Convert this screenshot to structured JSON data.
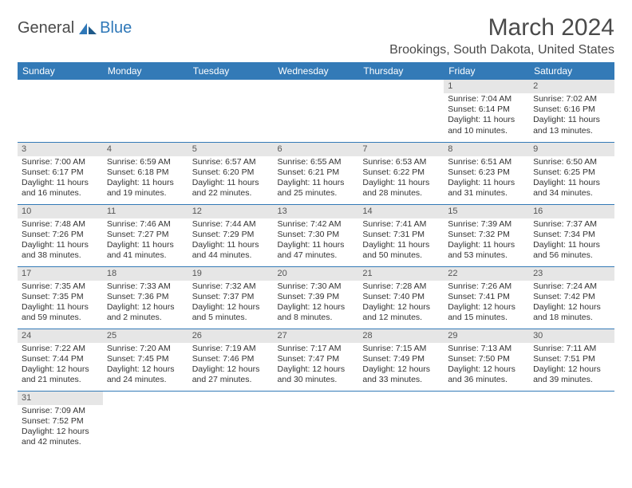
{
  "brand": {
    "part1": "General",
    "part2": "Blue"
  },
  "title": "March 2024",
  "location": "Brookings, South Dakota, United States",
  "colors": {
    "header_bg": "#337ab7",
    "header_text": "#ffffff",
    "daynum_bg": "#e6e6e6",
    "border": "#337ab7",
    "brand_gray": "#4a4a4a",
    "brand_blue": "#2f78b8"
  },
  "weekdays": [
    "Sunday",
    "Monday",
    "Tuesday",
    "Wednesday",
    "Thursday",
    "Friday",
    "Saturday"
  ],
  "first_weekday_index": 5,
  "days": [
    {
      "n": 1,
      "sunrise": "7:04 AM",
      "sunset": "6:14 PM",
      "dl_h": 11,
      "dl_m": 10
    },
    {
      "n": 2,
      "sunrise": "7:02 AM",
      "sunset": "6:16 PM",
      "dl_h": 11,
      "dl_m": 13
    },
    {
      "n": 3,
      "sunrise": "7:00 AM",
      "sunset": "6:17 PM",
      "dl_h": 11,
      "dl_m": 16
    },
    {
      "n": 4,
      "sunrise": "6:59 AM",
      "sunset": "6:18 PM",
      "dl_h": 11,
      "dl_m": 19
    },
    {
      "n": 5,
      "sunrise": "6:57 AM",
      "sunset": "6:20 PM",
      "dl_h": 11,
      "dl_m": 22
    },
    {
      "n": 6,
      "sunrise": "6:55 AM",
      "sunset": "6:21 PM",
      "dl_h": 11,
      "dl_m": 25
    },
    {
      "n": 7,
      "sunrise": "6:53 AM",
      "sunset": "6:22 PM",
      "dl_h": 11,
      "dl_m": 28
    },
    {
      "n": 8,
      "sunrise": "6:51 AM",
      "sunset": "6:23 PM",
      "dl_h": 11,
      "dl_m": 31
    },
    {
      "n": 9,
      "sunrise": "6:50 AM",
      "sunset": "6:25 PM",
      "dl_h": 11,
      "dl_m": 34
    },
    {
      "n": 10,
      "sunrise": "7:48 AM",
      "sunset": "7:26 PM",
      "dl_h": 11,
      "dl_m": 38
    },
    {
      "n": 11,
      "sunrise": "7:46 AM",
      "sunset": "7:27 PM",
      "dl_h": 11,
      "dl_m": 41
    },
    {
      "n": 12,
      "sunrise": "7:44 AM",
      "sunset": "7:29 PM",
      "dl_h": 11,
      "dl_m": 44
    },
    {
      "n": 13,
      "sunrise": "7:42 AM",
      "sunset": "7:30 PM",
      "dl_h": 11,
      "dl_m": 47
    },
    {
      "n": 14,
      "sunrise": "7:41 AM",
      "sunset": "7:31 PM",
      "dl_h": 11,
      "dl_m": 50
    },
    {
      "n": 15,
      "sunrise": "7:39 AM",
      "sunset": "7:32 PM",
      "dl_h": 11,
      "dl_m": 53
    },
    {
      "n": 16,
      "sunrise": "7:37 AM",
      "sunset": "7:34 PM",
      "dl_h": 11,
      "dl_m": 56
    },
    {
      "n": 17,
      "sunrise": "7:35 AM",
      "sunset": "7:35 PM",
      "dl_h": 11,
      "dl_m": 59
    },
    {
      "n": 18,
      "sunrise": "7:33 AM",
      "sunset": "7:36 PM",
      "dl_h": 12,
      "dl_m": 2
    },
    {
      "n": 19,
      "sunrise": "7:32 AM",
      "sunset": "7:37 PM",
      "dl_h": 12,
      "dl_m": 5
    },
    {
      "n": 20,
      "sunrise": "7:30 AM",
      "sunset": "7:39 PM",
      "dl_h": 12,
      "dl_m": 8
    },
    {
      "n": 21,
      "sunrise": "7:28 AM",
      "sunset": "7:40 PM",
      "dl_h": 12,
      "dl_m": 12
    },
    {
      "n": 22,
      "sunrise": "7:26 AM",
      "sunset": "7:41 PM",
      "dl_h": 12,
      "dl_m": 15
    },
    {
      "n": 23,
      "sunrise": "7:24 AM",
      "sunset": "7:42 PM",
      "dl_h": 12,
      "dl_m": 18
    },
    {
      "n": 24,
      "sunrise": "7:22 AM",
      "sunset": "7:44 PM",
      "dl_h": 12,
      "dl_m": 21
    },
    {
      "n": 25,
      "sunrise": "7:20 AM",
      "sunset": "7:45 PM",
      "dl_h": 12,
      "dl_m": 24
    },
    {
      "n": 26,
      "sunrise": "7:19 AM",
      "sunset": "7:46 PM",
      "dl_h": 12,
      "dl_m": 27
    },
    {
      "n": 27,
      "sunrise": "7:17 AM",
      "sunset": "7:47 PM",
      "dl_h": 12,
      "dl_m": 30
    },
    {
      "n": 28,
      "sunrise": "7:15 AM",
      "sunset": "7:49 PM",
      "dl_h": 12,
      "dl_m": 33
    },
    {
      "n": 29,
      "sunrise": "7:13 AM",
      "sunset": "7:50 PM",
      "dl_h": 12,
      "dl_m": 36
    },
    {
      "n": 30,
      "sunrise": "7:11 AM",
      "sunset": "7:51 PM",
      "dl_h": 12,
      "dl_m": 39
    },
    {
      "n": 31,
      "sunrise": "7:09 AM",
      "sunset": "7:52 PM",
      "dl_h": 12,
      "dl_m": 42
    }
  ],
  "labels": {
    "sunrise": "Sunrise:",
    "sunset": "Sunset:",
    "daylight": "Daylight:",
    "hours": "hours",
    "and": "and",
    "minutes": "minutes."
  }
}
